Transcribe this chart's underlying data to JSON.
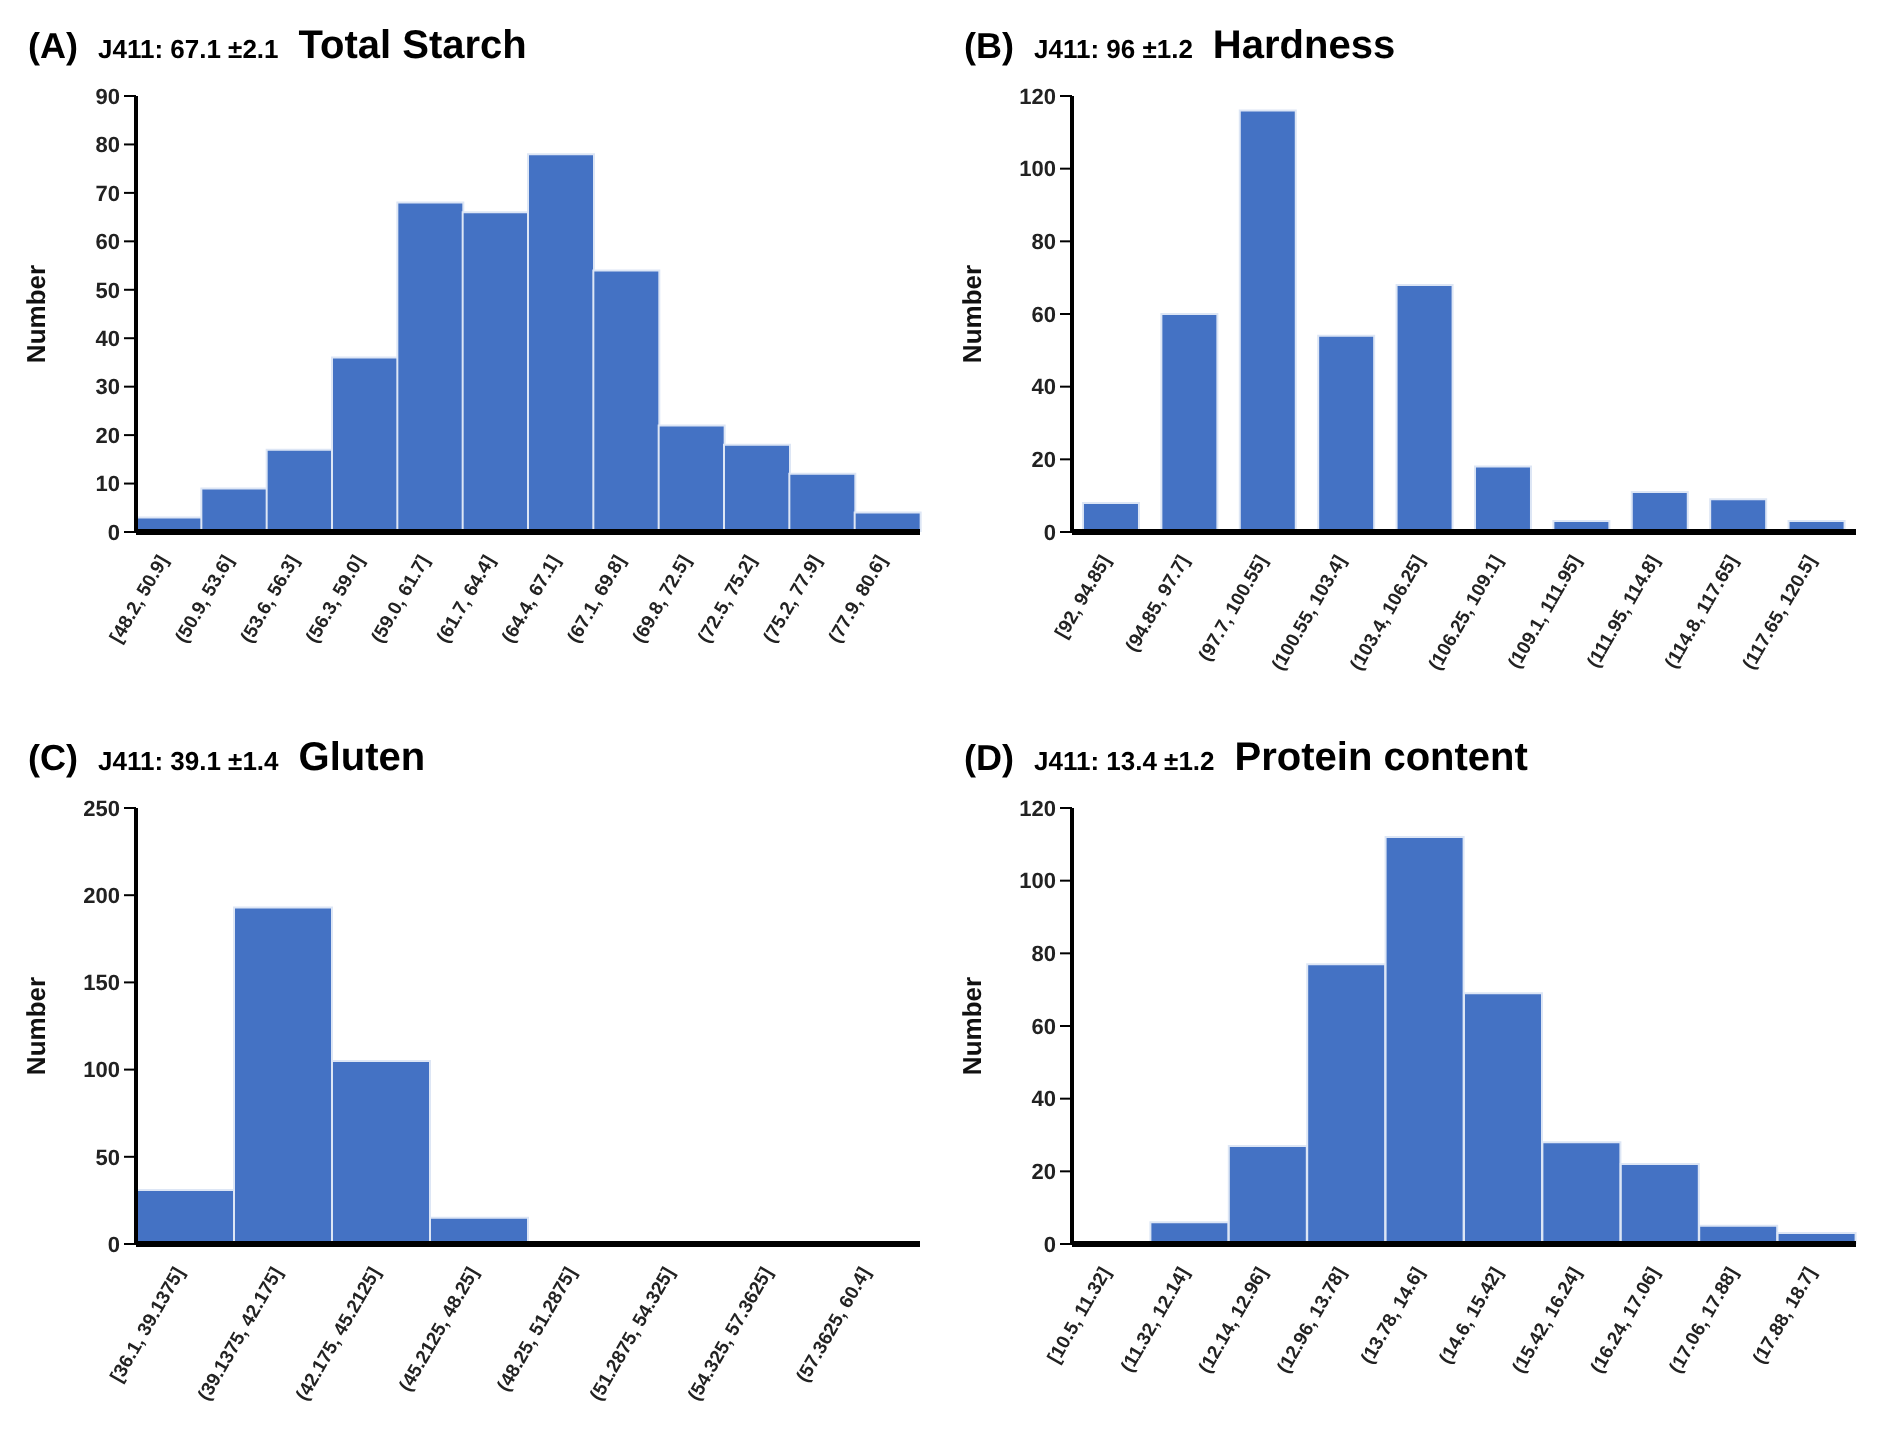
{
  "chart_data": [
    {
      "type": "bar",
      "title": "Total Starch",
      "subtitle": "J411: 67.1 ±2.1",
      "annotations": [
        "(A)"
      ],
      "ylabel": "Number",
      "color": "#4472c4",
      "categories": [
        "[48.2, 50.9]",
        "(50.9, 53.6]",
        "(53.6, 56.3]",
        "(56.3, 59.0]",
        "(59.0, 61.7]",
        "(61.7, 64.4]",
        "(64.4, 67.1]",
        "(67.1, 69.8]",
        "(69.8, 72.5]",
        "(72.5, 75.2]",
        "(75.2, 77.9]",
        "(77.9, 80.6]"
      ],
      "values": [
        3,
        9,
        17,
        36,
        68,
        66,
        78,
        54,
        22,
        18,
        12,
        4
      ],
      "ylim": [
        0,
        90
      ],
      "yticks": [
        0,
        10,
        20,
        30,
        40,
        50,
        60,
        70,
        80,
        90
      ],
      "grid": false
    },
    {
      "type": "bar",
      "title": "Hardness",
      "subtitle": "J411: 96 ±1.2",
      "annotations": [
        "(B)"
      ],
      "ylabel": "Number",
      "color": "#4472c4",
      "categories": [
        "[92, 94.85]",
        "(94.85, 97.7]",
        "(97.7, 100.55]",
        "(100.55, 103.4]",
        "(103.4, 106.25]",
        "(106.25, 109.1]",
        "(109.1, 111.95]",
        "(111.95, 114.8]",
        "(114.8, 117.65]",
        "(117.65, 120.5]"
      ],
      "values": [
        8,
        60,
        116,
        54,
        68,
        18,
        3,
        11,
        9,
        3
      ],
      "ylim": [
        0,
        120
      ],
      "yticks": [
        0,
        20,
        40,
        60,
        80,
        100,
        120
      ],
      "grid": false
    },
    {
      "type": "bar",
      "title": "Gluten",
      "subtitle": "J411: 39.1 ±1.4",
      "annotations": [
        "(C)"
      ],
      "ylabel": "Number",
      "color": "#4472c4",
      "categories": [
        "[36.1, 39.1375]",
        "(39.1375, 42.175]",
        "(42.175, 45.2125]",
        "(45.2125, 48.25]",
        "(48.25, 51.2875]",
        "(51.2875, 54.325]",
        "(54.325, 57.3625]",
        "(57.3625, 60.4]"
      ],
      "values": [
        31,
        193,
        105,
        15,
        0,
        0,
        0,
        0
      ],
      "ylim": [
        0,
        250
      ],
      "yticks": [
        0,
        50,
        100,
        150,
        200,
        250
      ],
      "grid": false
    },
    {
      "type": "bar",
      "title": "Protein content",
      "subtitle": "J411: 13.4 ±1.2",
      "annotations": [
        "(D)"
      ],
      "ylabel": "Number",
      "color": "#4472c4",
      "categories": [
        "[10.5, 11.32]",
        "(11.32, 12.14]",
        "(12.14, 12.96]",
        "(12.96, 13.78]",
        "(13.78, 14.6]",
        "(14.6, 15.42]",
        "(15.42, 16.24]",
        "(16.24, 17.06]",
        "(17.06, 17.88]",
        "(17.88, 18.7]"
      ],
      "values": [
        0,
        6,
        27,
        77,
        112,
        69,
        28,
        22,
        5,
        3
      ],
      "ylim": [
        0,
        120
      ],
      "yticks": [
        0,
        20,
        40,
        60,
        80,
        100,
        120
      ],
      "grid": false
    }
  ]
}
